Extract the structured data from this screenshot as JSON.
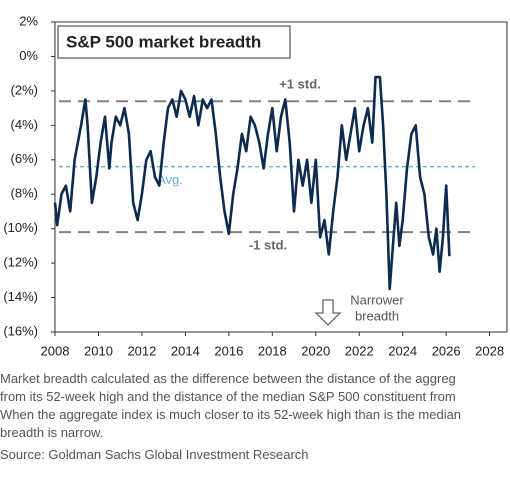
{
  "chart_data": {
    "type": "line",
    "title": "S&P 500 market breadth",
    "xlim": [
      2008,
      2028.8
    ],
    "xticks": [
      2008,
      2010,
      2012,
      2014,
      2016,
      2018,
      2020,
      2022,
      2024,
      2026,
      2028
    ],
    "ylim": [
      -16,
      2
    ],
    "yticks": [
      {
        "value": 2,
        "label": "2%"
      },
      {
        "value": 0,
        "label": "0%"
      },
      {
        "value": -2,
        "label": "(2%)"
      },
      {
        "value": -4,
        "label": "(4%)"
      },
      {
        "value": -6,
        "label": "(6%)"
      },
      {
        "value": -8,
        "label": "(8%)"
      },
      {
        "value": -10,
        "label": "(10%)"
      },
      {
        "value": -12,
        "label": "(12%)"
      },
      {
        "value": -14,
        "label": "(14%)"
      },
      {
        "value": -16,
        "label": "(16%)"
      }
    ],
    "reference_lines": [
      {
        "label": "+1 std.",
        "value": -2.6,
        "color": "#808080"
      },
      {
        "label": "Avg.",
        "value": -6.4,
        "color": "#62b5d9"
      },
      {
        "label": "-1 std.",
        "value": -10.2,
        "color": "#808080"
      }
    ],
    "annotation_lines": [
      "Narrower",
      "breadth"
    ],
    "series": [
      {
        "name": "S&P 500 market breadth",
        "color": "#0d2a4f",
        "x": [
          2008.0,
          2008.1,
          2008.3,
          2008.5,
          2008.7,
          2008.9,
          2009.2,
          2009.4,
          2009.5,
          2009.7,
          2009.9,
          2010.1,
          2010.3,
          2010.5,
          2010.6,
          2010.8,
          2011.0,
          2011.2,
          2011.4,
          2011.6,
          2011.8,
          2012.0,
          2012.2,
          2012.4,
          2012.6,
          2012.8,
          2013.0,
          2013.2,
          2013.4,
          2013.6,
          2013.8,
          2014.0,
          2014.2,
          2014.4,
          2014.6,
          2014.8,
          2015.0,
          2015.2,
          2015.4,
          2015.6,
          2015.8,
          2016.0,
          2016.2,
          2016.4,
          2016.6,
          2016.8,
          2017.0,
          2017.2,
          2017.4,
          2017.6,
          2017.8,
          2018.0,
          2018.2,
          2018.4,
          2018.6,
          2018.8,
          2019.0,
          2019.2,
          2019.4,
          2019.6,
          2019.8,
          2020.0,
          2020.2,
          2020.4,
          2020.6,
          2020.8,
          2021.0,
          2021.2,
          2021.4,
          2021.6,
          2021.8,
          2022.0,
          2022.2,
          2022.4,
          2022.6,
          2022.75,
          2022.95,
          2023.1,
          2023.25,
          2023.4,
          2023.55,
          2023.7,
          2023.85,
          2024.0,
          2024.2,
          2024.4,
          2024.6,
          2024.8,
          2025.0,
          2025.2,
          2025.4,
          2025.55,
          2025.7,
          2025.85,
          2026.0,
          2026.15
        ],
        "values": [
          -8.5,
          -9.8,
          -8,
          -7.5,
          -9,
          -6,
          -4,
          -2.5,
          -4,
          -8.5,
          -7,
          -5,
          -3.5,
          -6.5,
          -5,
          -3.5,
          -4,
          -3,
          -4.5,
          -8.5,
          -9.5,
          -8,
          -6,
          -5.5,
          -7,
          -7.5,
          -5,
          -3,
          -2.5,
          -3.5,
          -2,
          -2.5,
          -3.5,
          -2.3,
          -4,
          -2.5,
          -3,
          -2.5,
          -4.5,
          -7,
          -9,
          -10.3,
          -8,
          -6.5,
          -4.5,
          -5.5,
          -3.5,
          -4,
          -5,
          -6.5,
          -4.5,
          -3,
          -5.5,
          -3.5,
          -2.5,
          -5,
          -9,
          -6,
          -7.5,
          -6,
          -8.5,
          -6,
          -10.5,
          -9.5,
          -11.5,
          -9,
          -7,
          -4,
          -6,
          -4.5,
          -3,
          -5.5,
          -4,
          -3,
          -5,
          -1.2,
          -1.2,
          -4,
          -8,
          -13.5,
          -11,
          -8.5,
          -11,
          -9.5,
          -6.5,
          -4.5,
          -4,
          -7,
          -8,
          -10.5,
          -11.5,
          -10,
          -12.5,
          -10.5,
          -7.5,
          -11.6
        ]
      }
    ]
  },
  "caption": [
    "Market breadth calculated as the difference between the distance of the aggreg",
    "from its 52-week high and the distance of the median S&P 500 constituent from",
    "When the aggregate index is much closer to its 52-week high than is the median",
    "breadth is narrow."
  ],
  "source": "Source: Goldman Sachs Global Investment Research"
}
